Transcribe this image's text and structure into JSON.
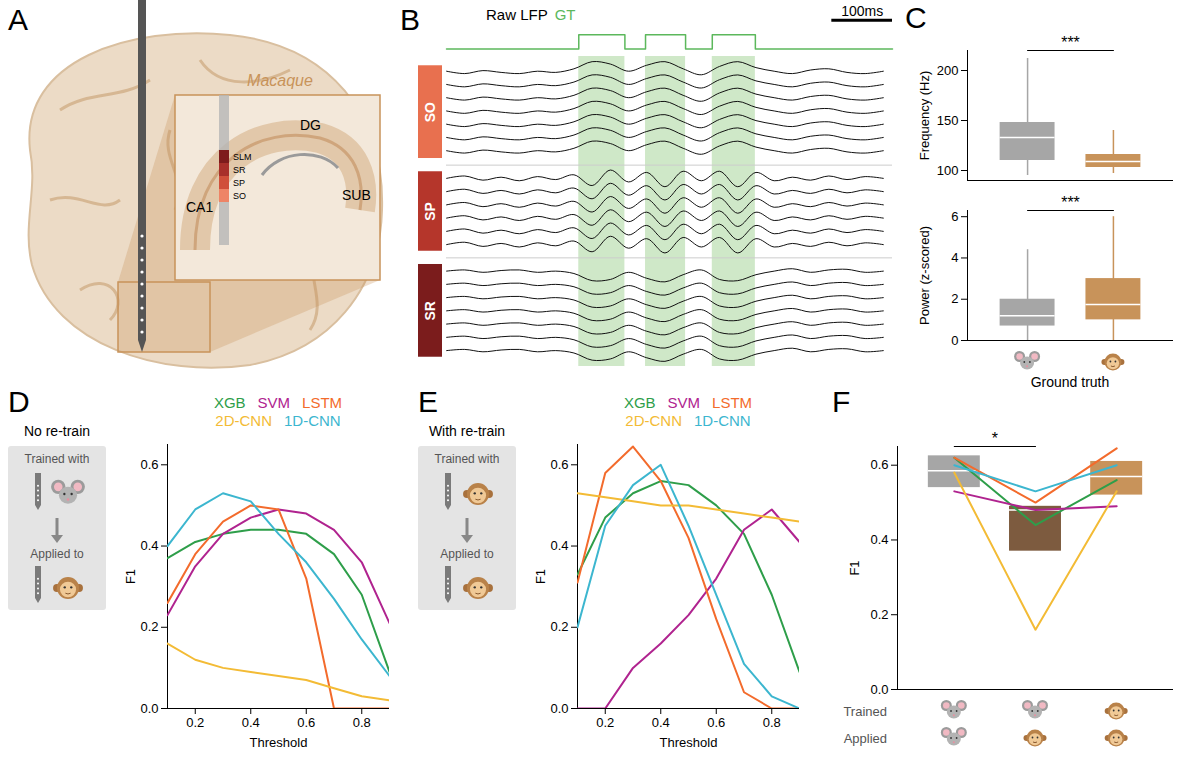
{
  "chart_data": [
    {
      "panel": "A",
      "type": "diagram",
      "species": "Macaque",
      "regions": [
        "CA1",
        "DG",
        "SUB"
      ],
      "layers": [
        "SLM",
        "SR",
        "SP",
        "SO"
      ],
      "colors": [
        "#7e1c1c",
        "#a8302a",
        "#d0503a",
        "#ee8466"
      ]
    },
    {
      "panel": "B",
      "type": "traces",
      "title": "Raw LFP",
      "xlim": [
        0,
        735
      ],
      "gt": {
        "name": "GT",
        "color": "#5cb85c",
        "intervals": [
          [
            218,
            294
          ],
          [
            328,
            394
          ],
          [
            438,
            509
          ]
        ]
      },
      "scalebar": {
        "value": 100,
        "label": "100ms"
      },
      "x": [
        0,
        30,
        60,
        90,
        120,
        150,
        180,
        210,
        240,
        270,
        300,
        330,
        360,
        390,
        420,
        450,
        480,
        510,
        540,
        570,
        600,
        630,
        660,
        690,
        720
      ],
      "series": [
        {
          "name": "SO",
          "color": "#e8704f",
          "channels": 7,
          "values": [
            0.1,
            -0.1,
            0.15,
            0,
            -0.1,
            0.1,
            0,
            0.3,
            0.9,
            0.7,
            0.1,
            0.6,
            0.9,
            0.3,
            -0.2,
            0.5,
            0.9,
            0.4,
            0.1,
            -0.1,
            0.2,
            0.3,
            0,
            -0.1,
            0.1
          ]
        },
        {
          "name": "SP",
          "color": "#b5362b",
          "channels": 6,
          "values": [
            0,
            0.2,
            -0.15,
            0.1,
            -0.2,
            0.15,
            -0.1,
            0.3,
            -0.6,
            0.7,
            -0.3,
            0.5,
            -0.7,
            0.6,
            -0.2,
            0.6,
            -0.7,
            0.5,
            -0.2,
            0.1,
            -0.15,
            0.2,
            -0.1,
            0.15,
            0
          ]
        },
        {
          "name": "SR",
          "color": "#7b1c1c",
          "channels": 7,
          "values": [
            0,
            0.1,
            -0.1,
            0.05,
            0.1,
            -0.1,
            0,
            -0.2,
            -0.8,
            -0.7,
            -0.1,
            -0.6,
            -0.9,
            -0.3,
            0.1,
            -0.7,
            -0.8,
            -0.3,
            0,
            0.2,
            -0.1,
            0.1,
            0.15,
            -0.1,
            0
          ]
        }
      ]
    },
    {
      "panel": "C",
      "type": "box",
      "ylabel": "Frequency (Hz)",
      "categories": [
        null,
        null
      ],
      "colors": [
        "#a6a6a6",
        "#c8935a"
      ],
      "whisker_low": [
        95,
        97
      ],
      "q1": [
        110,
        103
      ],
      "median": [
        133,
        109
      ],
      "q3": [
        148,
        116
      ],
      "whisker_high": [
        212,
        140
      ],
      "ylim": [
        90,
        220
      ],
      "yticks": [
        100,
        150,
        200
      ],
      "significance": {
        "label": "***",
        "between": [
          0,
          1
        ]
      }
    },
    {
      "type": "box",
      "ylabel": "Power (z-scored)",
      "xlabel": "Ground truth",
      "categories": [
        null,
        null
      ],
      "colors": [
        "#a6a6a6",
        "#c8935a"
      ],
      "whisker_low": [
        0,
        0
      ],
      "q1": [
        0.7,
        1.0
      ],
      "median": [
        1.2,
        1.75
      ],
      "q3": [
        2.0,
        3.0
      ],
      "whisker_high": [
        4.4,
        6.0
      ],
      "ylim": [
        0,
        6.3
      ],
      "yticks": [
        0,
        2,
        4,
        6
      ],
      "significance": {
        "label": "***",
        "between": [
          0,
          1
        ]
      }
    },
    {
      "panel": "D",
      "type": "line",
      "title": "No re-train",
      "trained_label": "Trained with",
      "applied_label": "Applied to",
      "legend": "top",
      "xlabel": "Threshold",
      "ylabel": "F1",
      "x": [
        0.1,
        0.2,
        0.3,
        0.4,
        0.5,
        0.6,
        0.7,
        0.8,
        0.9
      ],
      "xlim": [
        0.1,
        0.9
      ],
      "xticks": [
        0.2,
        0.4,
        0.6,
        0.8
      ],
      "ylim": [
        0,
        0.65
      ],
      "yticks": [
        {
          "value": 0,
          "label": "0.0"
        },
        0.2,
        0.4,
        0.6
      ],
      "series": [
        {
          "name": "XGB",
          "color": "#2e9e4a",
          "values": [
            0.37,
            0.41,
            0.43,
            0.44,
            0.44,
            0.43,
            0.38,
            0.28,
            0.09
          ]
        },
        {
          "name": "SVM",
          "color": "#b0238f",
          "values": [
            0.23,
            0.35,
            0.43,
            0.47,
            0.49,
            0.48,
            0.44,
            0.36,
            0.21
          ]
        },
        {
          "name": "LSTM",
          "color": "#f36b2c",
          "values": [
            0.26,
            0.38,
            0.46,
            0.5,
            0.49,
            0.32,
            0.0,
            0.0,
            0.0
          ]
        },
        {
          "name": "2D-CNN",
          "color": "#f3bb35",
          "values": [
            0.16,
            0.12,
            0.1,
            0.09,
            0.08,
            0.07,
            0.05,
            0.03,
            0.02
          ]
        },
        {
          "name": "1D-CNN",
          "color": "#3cb6cf",
          "values": [
            0.4,
            0.49,
            0.53,
            0.51,
            0.43,
            0.36,
            0.27,
            0.17,
            0.08
          ]
        }
      ]
    },
    {
      "panel": "E",
      "type": "line",
      "title": "With re-train",
      "trained_label": "Trained with",
      "applied_label": "Applied to",
      "legend": "top",
      "xlabel": "Threshold",
      "ylabel": "F1",
      "x": [
        0.1,
        0.2,
        0.3,
        0.4,
        0.5,
        0.6,
        0.7,
        0.8,
        0.9
      ],
      "xlim": [
        0.1,
        0.9
      ],
      "xticks": [
        0.2,
        0.4,
        0.6,
        0.8
      ],
      "ylim": [
        0,
        0.65
      ],
      "yticks": [
        {
          "value": 0,
          "label": "0.0"
        },
        0.2,
        0.4,
        0.6
      ],
      "series": [
        {
          "name": "XGB",
          "color": "#2e9e4a",
          "values": [
            0.33,
            0.47,
            0.53,
            0.56,
            0.55,
            0.5,
            0.43,
            0.28,
            0.09
          ]
        },
        {
          "name": "SVM",
          "color": "#b0238f",
          "values": [
            0.0,
            0.0,
            0.1,
            0.16,
            0.23,
            0.32,
            0.44,
            0.49,
            0.41
          ]
        },
        {
          "name": "LSTM",
          "color": "#f36b2c",
          "values": [
            0.31,
            0.58,
            0.645,
            0.56,
            0.42,
            0.22,
            0.04,
            0.0,
            0.0
          ]
        },
        {
          "name": "2D-CNN",
          "color": "#f3bb35",
          "values": [
            0.53,
            0.52,
            0.51,
            0.5,
            0.5,
            0.49,
            0.48,
            0.47,
            0.46
          ]
        },
        {
          "name": "1D-CNN",
          "color": "#3cb6cf",
          "values": [
            0.2,
            0.45,
            0.55,
            0.6,
            0.45,
            0.28,
            0.11,
            0.03,
            0.0
          ]
        }
      ]
    },
    {
      "panel": "F",
      "type": "box",
      "ylabel": "F1",
      "categories": [
        null,
        null,
        null
      ],
      "row_labels": [
        "Trained",
        "Applied"
      ],
      "colors": [
        "#a6a6a6",
        "#7d5b3f",
        "#c8935a"
      ],
      "q1": [
        0.54,
        0.37,
        0.52
      ],
      "median": [
        0.585,
        0.48,
        0.57
      ],
      "q3": [
        0.625,
        0.49,
        0.61
      ],
      "ylim": [
        0,
        0.65
      ],
      "yticks": [
        {
          "value": 0,
          "label": "0.0"
        },
        0.2,
        0.4,
        0.6
      ],
      "significance": {
        "label": "*",
        "between": [
          0,
          1
        ]
      },
      "series": [
        {
          "name": "XGB",
          "color": "#2e9e4a",
          "values": [
            0.62,
            0.44,
            0.56
          ]
        },
        {
          "name": "SVM",
          "color": "#b0238f",
          "values": [
            0.53,
            0.48,
            0.49
          ]
        },
        {
          "name": "LSTM",
          "color": "#f36b2c",
          "values": [
            0.62,
            0.5,
            0.645
          ]
        },
        {
          "name": "2D-CNN",
          "color": "#f3bb35",
          "values": [
            0.58,
            0.16,
            0.53
          ]
        },
        {
          "name": "1D-CNN",
          "color": "#3cb6cf",
          "values": [
            0.6,
            0.53,
            0.6
          ]
        }
      ]
    }
  ]
}
